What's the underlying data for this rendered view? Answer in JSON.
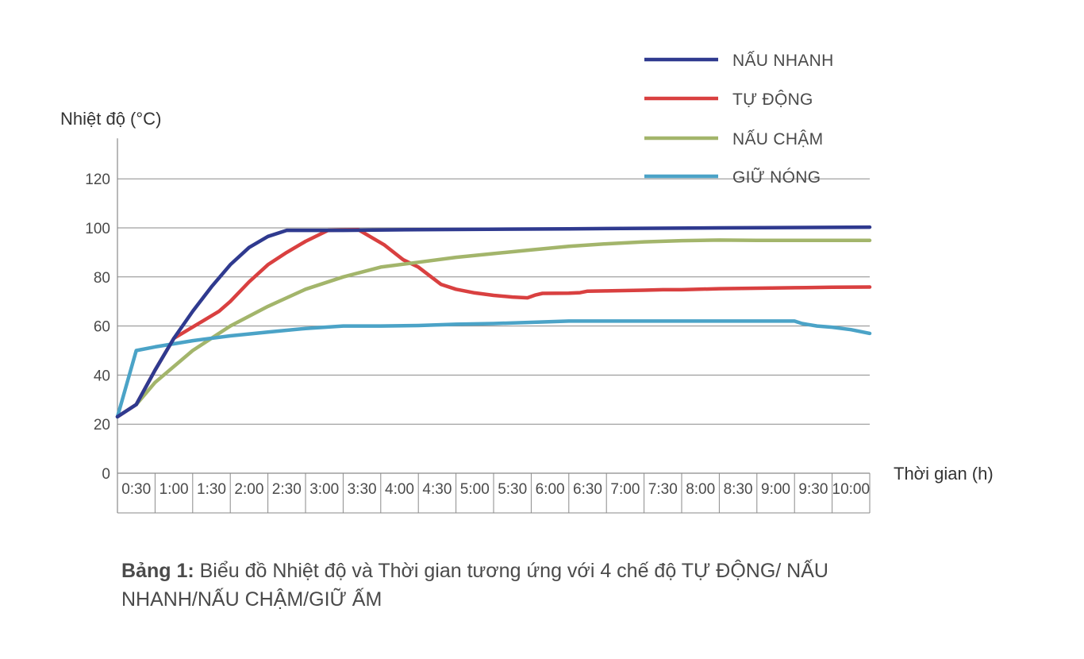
{
  "chart_data": {
    "type": "line",
    "ylabel": "Nhiệt độ (°C)",
    "xlabel": "Thời gian (h)",
    "ylim": [
      0,
      130
    ],
    "yticks": [
      0,
      20,
      40,
      60,
      80,
      100,
      120
    ],
    "categories": [
      "0:30",
      "1:00",
      "1:30",
      "2:00",
      "2:30",
      "3:00",
      "3:30",
      "4:00",
      "4:30",
      "5:00",
      "5:30",
      "6:00",
      "6:30",
      "7:00",
      "7:30",
      "8:00",
      "8:30",
      "9:00",
      "9:30",
      "10:00"
    ],
    "grid": "horizontal",
    "legend_position": "top-right",
    "series": [
      {
        "name": "NẤU NHANH",
        "color": "#2f3a8f",
        "points": [
          [
            0.0,
            23
          ],
          [
            0.5,
            28
          ],
          [
            1.0,
            42
          ],
          [
            1.5,
            55
          ],
          [
            2.0,
            66
          ],
          [
            2.5,
            76
          ],
          [
            3.0,
            85
          ],
          [
            3.5,
            92
          ],
          [
            4.0,
            96.5
          ],
          [
            4.5,
            99
          ],
          [
            5.0,
            99
          ],
          [
            6.0,
            99
          ],
          [
            8.0,
            99.3
          ],
          [
            12.0,
            99.6
          ],
          [
            16.0,
            100
          ],
          [
            20.0,
            100.3
          ]
        ]
      },
      {
        "name": "TỰ ĐỘNG",
        "color": "#d94040",
        "points": [
          [
            0.0,
            23
          ],
          [
            0.5,
            28
          ],
          [
            1.0,
            42
          ],
          [
            1.5,
            55
          ],
          [
            2.7,
            66
          ],
          [
            3.0,
            70
          ],
          [
            3.5,
            78
          ],
          [
            4.0,
            85
          ],
          [
            4.5,
            90
          ],
          [
            5.0,
            94.5
          ],
          [
            5.6,
            99
          ],
          [
            6.4,
            99.3
          ],
          [
            7.1,
            93
          ],
          [
            7.6,
            87
          ],
          [
            8.0,
            84
          ],
          [
            8.6,
            77
          ],
          [
            9.0,
            75
          ],
          [
            9.5,
            73.5
          ],
          [
            10.0,
            72.5
          ],
          [
            10.5,
            71.8
          ],
          [
            10.9,
            71.5
          ],
          [
            11.1,
            72.6
          ],
          [
            11.3,
            73.3
          ],
          [
            12.0,
            73.4
          ],
          [
            12.3,
            73.6
          ],
          [
            12.5,
            74.2
          ],
          [
            13.0,
            74.3
          ],
          [
            14.0,
            74.6
          ],
          [
            14.5,
            74.8
          ],
          [
            15.0,
            74.8
          ],
          [
            16.0,
            75.2
          ],
          [
            17.0,
            75.4
          ],
          [
            18.0,
            75.6
          ],
          [
            19.0,
            75.8
          ],
          [
            20.0,
            75.9
          ]
        ]
      },
      {
        "name": "NẤU CHẬM",
        "color": "#a3b56b",
        "points": [
          [
            0.5,
            28
          ],
          [
            1.0,
            37
          ],
          [
            2.0,
            50
          ],
          [
            3.0,
            60
          ],
          [
            4.0,
            68
          ],
          [
            5.0,
            75
          ],
          [
            6.0,
            80
          ],
          [
            7.0,
            84
          ],
          [
            8.0,
            86
          ],
          [
            9.0,
            88
          ],
          [
            10.0,
            89.5
          ],
          [
            11.0,
            91
          ],
          [
            12.0,
            92.5
          ],
          [
            13.0,
            93.5
          ],
          [
            14.0,
            94.3
          ],
          [
            15.0,
            94.8
          ],
          [
            16.0,
            95
          ],
          [
            17.0,
            94.9
          ],
          [
            18.0,
            94.9
          ],
          [
            19.0,
            94.9
          ],
          [
            20.0,
            94.9
          ]
        ]
      },
      {
        "name": "GIỮ NÓNG",
        "color": "#4ba3c7",
        "points": [
          [
            0.0,
            23
          ],
          [
            0.5,
            50
          ],
          [
            1.0,
            51.5
          ],
          [
            2.0,
            54
          ],
          [
            3.0,
            56
          ],
          [
            4.0,
            57.5
          ],
          [
            5.0,
            59
          ],
          [
            6.0,
            60
          ],
          [
            7.0,
            60
          ],
          [
            8.0,
            60.2
          ],
          [
            9.0,
            60.7
          ],
          [
            10.0,
            61
          ],
          [
            11.0,
            61.5
          ],
          [
            12.0,
            62
          ],
          [
            13.0,
            62
          ],
          [
            14.0,
            62
          ],
          [
            15.0,
            62
          ],
          [
            16.0,
            62
          ],
          [
            17.0,
            62
          ],
          [
            18.0,
            62
          ],
          [
            18.2,
            61
          ],
          [
            18.6,
            60
          ],
          [
            19.0,
            59.5
          ],
          [
            19.5,
            58.5
          ],
          [
            20.0,
            57
          ]
        ]
      }
    ]
  },
  "caption": {
    "label": "Bảng 1:",
    "text": " Biểu đồ Nhiệt độ và Thời gian tương ứng với 4 chế độ TỰ ĐỘNG/ NẤU NHANH/NẤU CHẬM/GIỮ ẤM"
  }
}
